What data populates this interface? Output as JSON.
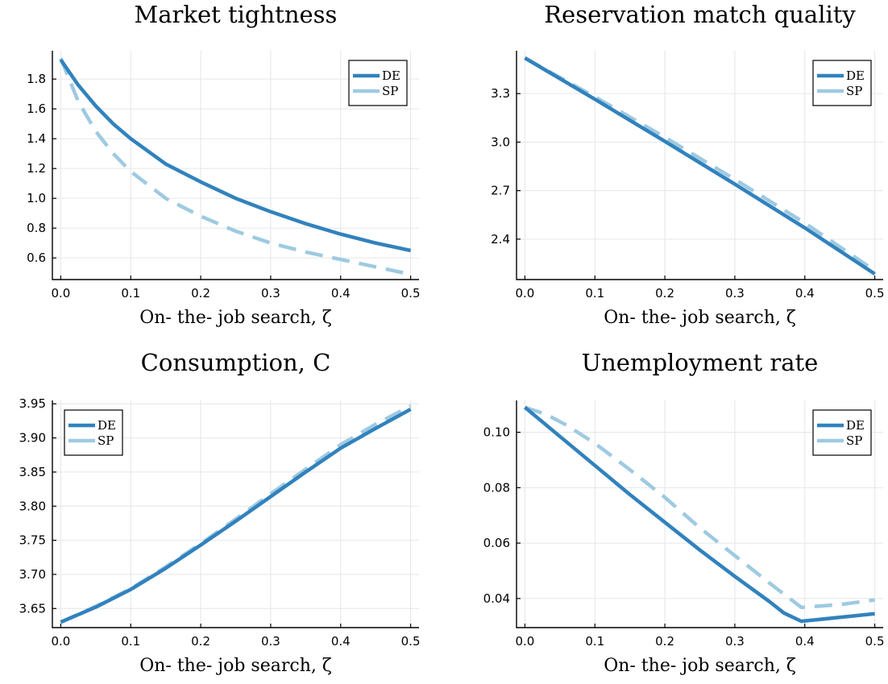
{
  "chart_data": [
    {
      "type": "line",
      "title": "Market tightness",
      "xlabel": "On- the- job search, ζ",
      "ylabel": "",
      "xlim": [
        -0.012,
        0.512
      ],
      "ylim": [
        0.455,
        1.99
      ],
      "xticks": [
        0.0,
        0.1,
        0.2,
        0.3,
        0.4,
        0.5
      ],
      "xtick_labels": [
        "0.0",
        "0.1",
        "0.2",
        "0.3",
        "0.4",
        "0.5"
      ],
      "yticks": [
        0.6,
        0.8,
        1.0,
        1.2,
        1.4,
        1.6,
        1.8
      ],
      "ytick_labels": [
        "0.6",
        "0.8",
        "1.0",
        "1.2",
        "1.4",
        "1.6",
        "1.8"
      ],
      "grid": true,
      "legend_position": "top-right",
      "series": [
        {
          "name": "DE",
          "color": "#3182bd",
          "style": "solid",
          "x": [
            0.0,
            0.025,
            0.05,
            0.075,
            0.1,
            0.15,
            0.2,
            0.25,
            0.3,
            0.35,
            0.4,
            0.45,
            0.5
          ],
          "y": [
            1.93,
            1.76,
            1.62,
            1.5,
            1.4,
            1.23,
            1.11,
            1.0,
            0.91,
            0.83,
            0.76,
            0.7,
            0.65
          ]
        },
        {
          "name": "SP",
          "color": "#9ecae1",
          "style": "dashed",
          "x": [
            0.0,
            0.025,
            0.05,
            0.075,
            0.1,
            0.15,
            0.2,
            0.25,
            0.3,
            0.35,
            0.4,
            0.45,
            0.5
          ],
          "y": [
            1.94,
            1.65,
            1.45,
            1.3,
            1.18,
            1.0,
            0.88,
            0.78,
            0.7,
            0.64,
            0.59,
            0.54,
            0.49
          ]
        }
      ]
    },
    {
      "type": "line",
      "title": "Reservation match quality",
      "xlabel": "On- the- job search, ζ",
      "ylabel": "",
      "xlim": [
        -0.012,
        0.512
      ],
      "ylim": [
        2.15,
        3.565
      ],
      "xticks": [
        0.0,
        0.1,
        0.2,
        0.3,
        0.4,
        0.5
      ],
      "xtick_labels": [
        "0.0",
        "0.1",
        "0.2",
        "0.3",
        "0.4",
        "0.5"
      ],
      "yticks": [
        2.4,
        2.7,
        3.0,
        3.3
      ],
      "ytick_labels": [
        "2.4",
        "2.7",
        "3.0",
        "3.3"
      ],
      "grid": true,
      "legend_position": "top-right",
      "series": [
        {
          "name": "DE",
          "color": "#3182bd",
          "style": "solid",
          "x": [
            0.0,
            0.1,
            0.2,
            0.3,
            0.4,
            0.5
          ],
          "y": [
            3.52,
            3.265,
            3.005,
            2.74,
            2.47,
            2.185
          ]
        },
        {
          "name": "SP",
          "color": "#9ecae1",
          "style": "dashed",
          "x": [
            0.0,
            0.1,
            0.2,
            0.3,
            0.4,
            0.5
          ],
          "y": [
            3.52,
            3.28,
            3.03,
            2.77,
            2.5,
            2.205
          ]
        }
      ]
    },
    {
      "type": "line",
      "title": "Consumption, C",
      "xlabel": "On- the- job search, ζ",
      "ylabel": "",
      "xlim": [
        -0.012,
        0.512
      ],
      "ylim": [
        3.622,
        3.955
      ],
      "xticks": [
        0.0,
        0.1,
        0.2,
        0.3,
        0.4,
        0.5
      ],
      "xtick_labels": [
        "0.0",
        "0.1",
        "0.2",
        "0.3",
        "0.4",
        "0.5"
      ],
      "yticks": [
        3.65,
        3.7,
        3.75,
        3.8,
        3.85,
        3.9,
        3.95
      ],
      "ytick_labels": [
        "3.65",
        "3.70",
        "3.75",
        "3.80",
        "3.85",
        "3.90",
        "3.95"
      ],
      "grid": true,
      "legend_position": "top-left",
      "series": [
        {
          "name": "DE",
          "color": "#3182bd",
          "style": "solid",
          "x": [
            0.0,
            0.05,
            0.1,
            0.15,
            0.2,
            0.25,
            0.3,
            0.35,
            0.4,
            0.45,
            0.5
          ],
          "y": [
            3.63,
            3.652,
            3.678,
            3.709,
            3.743,
            3.778,
            3.814,
            3.85,
            3.885,
            3.914,
            3.942
          ]
        },
        {
          "name": "SP",
          "color": "#9ecae1",
          "style": "dashed",
          "x": [
            0.0,
            0.05,
            0.1,
            0.15,
            0.2,
            0.25,
            0.3,
            0.35,
            0.4,
            0.45,
            0.5
          ],
          "y": [
            3.63,
            3.653,
            3.679,
            3.711,
            3.745,
            3.781,
            3.818,
            3.854,
            3.89,
            3.92,
            3.947
          ]
        }
      ]
    },
    {
      "type": "line",
      "title": "Unemployment rate",
      "xlabel": "On- the- job search, ζ",
      "ylabel": "",
      "xlim": [
        -0.012,
        0.512
      ],
      "ylim": [
        0.0295,
        0.1115
      ],
      "xticks": [
        0.0,
        0.1,
        0.2,
        0.3,
        0.4,
        0.5
      ],
      "xtick_labels": [
        "0.0",
        "0.1",
        "0.2",
        "0.3",
        "0.4",
        "0.5"
      ],
      "yticks": [
        0.04,
        0.06,
        0.08,
        0.1
      ],
      "ytick_labels": [
        "0.04",
        "0.06",
        "0.08",
        "0.10"
      ],
      "grid": true,
      "legend_position": "top-right",
      "series": [
        {
          "name": "DE",
          "color": "#3182bd",
          "style": "solid",
          "x": [
            0.0,
            0.05,
            0.1,
            0.15,
            0.2,
            0.25,
            0.3,
            0.35,
            0.37,
            0.395,
            0.45,
            0.5
          ],
          "y": [
            0.109,
            0.0985,
            0.088,
            0.0775,
            0.0675,
            0.0575,
            0.048,
            0.0388,
            0.0348,
            0.0318,
            0.0332,
            0.0345
          ]
        },
        {
          "name": "SP",
          "color": "#9ecae1",
          "style": "dashed",
          "x": [
            0.0,
            0.03,
            0.06,
            0.1,
            0.15,
            0.2,
            0.25,
            0.3,
            0.35,
            0.395,
            0.45,
            0.5
          ],
          "y": [
            0.109,
            0.1065,
            0.1025,
            0.096,
            0.0865,
            0.0765,
            0.0655,
            0.0555,
            0.0455,
            0.0368,
            0.0378,
            0.0395
          ]
        }
      ]
    }
  ]
}
